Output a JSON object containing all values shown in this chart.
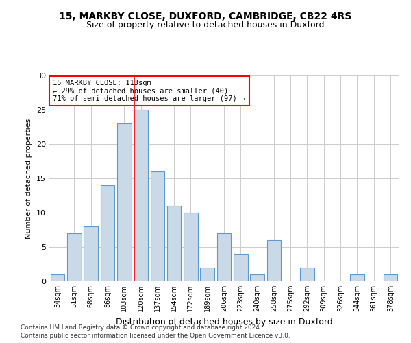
{
  "title1": "15, MARKBY CLOSE, DUXFORD, CAMBRIDGE, CB22 4RS",
  "title2": "Size of property relative to detached houses in Duxford",
  "xlabel": "Distribution of detached houses by size in Duxford",
  "ylabel": "Number of detached properties",
  "footnote1": "Contains HM Land Registry data © Crown copyright and database right 2024.",
  "footnote2": "Contains public sector information licensed under the Open Government Licence v3.0.",
  "bin_labels": [
    "34sqm",
    "51sqm",
    "68sqm",
    "86sqm",
    "103sqm",
    "120sqm",
    "137sqm",
    "154sqm",
    "172sqm",
    "189sqm",
    "206sqm",
    "223sqm",
    "240sqm",
    "258sqm",
    "275sqm",
    "292sqm",
    "309sqm",
    "326sqm",
    "344sqm",
    "361sqm",
    "378sqm"
  ],
  "bar_values": [
    1,
    7,
    8,
    14,
    23,
    25,
    16,
    11,
    10,
    2,
    7,
    4,
    1,
    6,
    0,
    2,
    0,
    0,
    1,
    0,
    1
  ],
  "bar_color": "#c9d9e8",
  "bar_edge_color": "#5b9bd5",
  "vline_x": 113,
  "bin_edges": [
    34,
    51,
    68,
    86,
    103,
    120,
    137,
    154,
    172,
    189,
    206,
    223,
    240,
    258,
    275,
    292,
    309,
    326,
    344,
    361,
    378,
    395
  ],
  "annotation_text": "15 MARKBY CLOSE: 113sqm\n← 29% of detached houses are smaller (40)\n71% of semi-detached houses are larger (97) →",
  "annotation_box_color": "white",
  "annotation_box_edge_color": "red",
  "vline_color": "red",
  "ylim": [
    0,
    30
  ],
  "yticks": [
    0,
    5,
    10,
    15,
    20,
    25,
    30
  ],
  "bg_color": "#f0f4f8"
}
